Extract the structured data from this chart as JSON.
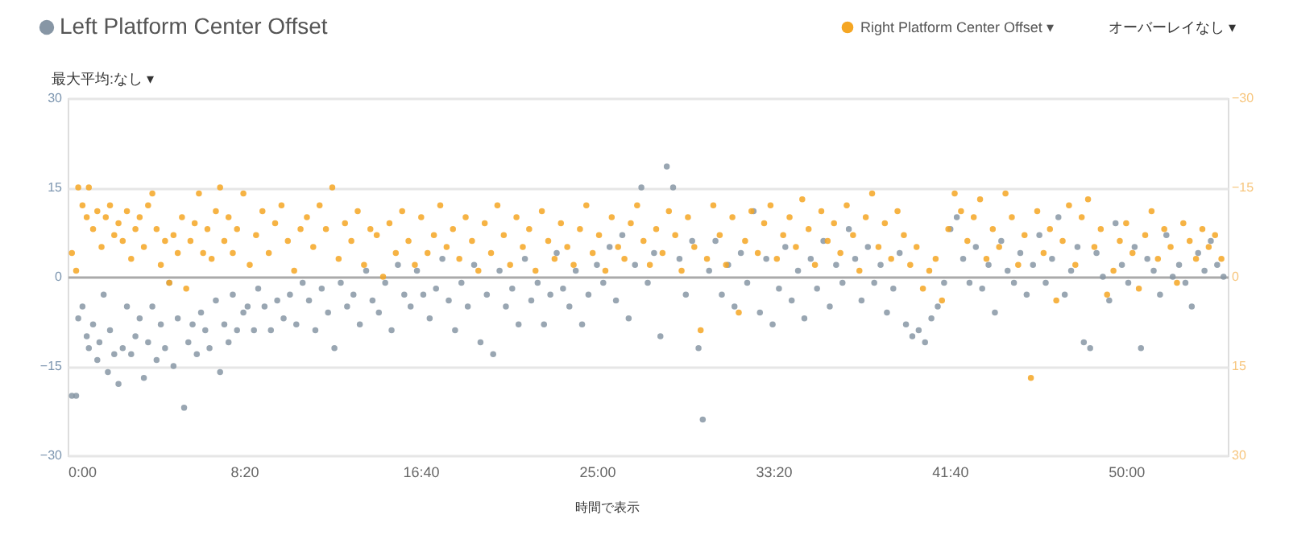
{
  "chart_data": {
    "type": "scatter",
    "xlim": [
      0,
      54.8
    ],
    "xticks": [
      {
        "value": 0,
        "label": "0:00"
      },
      {
        "value": 8.3333,
        "label": "8:20"
      },
      {
        "value": 16.6667,
        "label": "16:40"
      },
      {
        "value": 25,
        "label": "25:00"
      },
      {
        "value": 33.3333,
        "label": "33:20"
      },
      {
        "value": 41.6667,
        "label": "41:40"
      },
      {
        "value": 50,
        "label": "50:00"
      }
    ],
    "ylim": [
      -30,
      30
    ],
    "yticks": [
      -30,
      -15,
      0,
      15,
      30
    ],
    "y2lim": [
      30,
      -30
    ],
    "y2ticks": [
      -30,
      -15,
      0,
      15,
      30
    ],
    "grid": "y",
    "legend": "top",
    "marker": "circle",
    "annotations": [
      "最大平均:なし ▾",
      "オーバーレイなし ▾",
      "時間で表示"
    ],
    "series": [
      {
        "name": "Left Platform Center Offset",
        "color": "#8796a5",
        "x": [
          0.2,
          0.4,
          0.5,
          0.7,
          0.9,
          1.0,
          1.2,
          1.4,
          1.5,
          1.7,
          1.9,
          2.0,
          2.2,
          2.4,
          2.6,
          2.8,
          3.0,
          3.2,
          3.4,
          3.6,
          3.8,
          4.0,
          4.2,
          4.4,
          4.6,
          4.8,
          5.0,
          5.2,
          5.5,
          5.7,
          5.9,
          6.1,
          6.3,
          6.5,
          6.7,
          7.0,
          7.2,
          7.4,
          7.6,
          7.8,
          8.0,
          8.3,
          8.5,
          8.8,
          9.0,
          9.3,
          9.6,
          9.9,
          10.2,
          10.5,
          10.8,
          11.1,
          11.4,
          11.7,
          12.0,
          12.3,
          12.6,
          12.9,
          13.2,
          13.5,
          13.8,
          14.1,
          14.4,
          14.7,
          15.0,
          15.3,
          15.6,
          15.9,
          16.2,
          16.5,
          16.8,
          17.1,
          17.4,
          17.7,
          18.0,
          18.3,
          18.6,
          18.9,
          19.2,
          19.5,
          19.8,
          20.1,
          20.4,
          20.7,
          21.0,
          21.3,
          21.6,
          21.9,
          22.2,
          22.5,
          22.8,
          23.1,
          23.4,
          23.7,
          24.0,
          24.3,
          24.6,
          25.0,
          25.3,
          25.6,
          25.9,
          26.2,
          26.5,
          26.8,
          27.1,
          27.4,
          27.7,
          28.0,
          28.3,
          28.6,
          28.9,
          29.2,
          29.5,
          29.8,
          30.0,
          30.3,
          30.6,
          30.9,
          31.2,
          31.5,
          31.8,
          32.1,
          32.4,
          32.7,
          33.0,
          33.3,
          33.6,
          33.9,
          34.2,
          34.5,
          34.8,
          35.1,
          35.4,
          35.7,
          36.0,
          36.3,
          36.6,
          36.9,
          37.2,
          37.5,
          37.8,
          38.1,
          38.4,
          38.7,
          39.0,
          39.3,
          39.6,
          39.9,
          40.2,
          40.5,
          40.8,
          41.1,
          41.4,
          41.7,
          42.0,
          42.3,
          42.6,
          42.9,
          43.2,
          43.5,
          43.8,
          44.1,
          44.4,
          44.7,
          45.0,
          45.3,
          45.6,
          45.9,
          46.2,
          46.5,
          46.8,
          47.1,
          47.4,
          47.7,
          48.0,
          48.3,
          48.6,
          48.9,
          49.2,
          49.5,
          49.8,
          50.1,
          50.4,
          50.7,
          51.0,
          51.3,
          51.6,
          51.9,
          52.2,
          52.5,
          52.8,
          53.1,
          53.4,
          53.7,
          54.0,
          54.3,
          54.6
        ],
        "values": [
          -20,
          -20,
          -7,
          -5,
          -10,
          -12,
          -8,
          -14,
          -11,
          -3,
          -16,
          -9,
          -13,
          -18,
          -12,
          -5,
          -13,
          -10,
          -7,
          -17,
          -11,
          -5,
          -14,
          -8,
          -12,
          -1,
          -15,
          -7,
          -22,
          -11,
          -8,
          -13,
          -6,
          -9,
          -12,
          -4,
          -16,
          -8,
          -11,
          -3,
          -9,
          -6,
          -5,
          -9,
          -2,
          -5,
          -9,
          -4,
          -7,
          -3,
          -8,
          -1,
          -4,
          -9,
          -2,
          -6,
          -12,
          -1,
          -5,
          -3,
          -8,
          1,
          -4,
          -6,
          -1,
          -9,
          2,
          -3,
          -5,
          1,
          -3,
          -7,
          -2,
          3,
          -4,
          -9,
          -1,
          -5,
          2,
          -11,
          -3,
          -13,
          1,
          -5,
          -2,
          -8,
          3,
          -4,
          -1,
          -8,
          -3,
          4,
          -2,
          -5,
          1,
          -8,
          -3,
          2,
          -1,
          5,
          -4,
          7,
          -7,
          2,
          15,
          -1,
          4,
          -10,
          18.5,
          15,
          3,
          -3,
          6,
          -12,
          -24,
          1,
          6,
          -3,
          2,
          -5,
          4,
          -1,
          11,
          -6,
          3,
          -8,
          -2,
          5,
          -4,
          1,
          -7,
          3,
          -2,
          6,
          -5,
          2,
          -1,
          8,
          3,
          -4,
          5,
          -1,
          2,
          -6,
          -2,
          4,
          -8,
          -10,
          -9,
          -11,
          -7,
          -5,
          -1,
          8,
          10,
          3,
          -1,
          5,
          -2,
          2,
          -6,
          6,
          1,
          -1,
          4,
          -3,
          2,
          7,
          -1,
          3,
          10,
          -3,
          1,
          5,
          -11,
          -12,
          4,
          0,
          -4,
          9,
          2,
          -1,
          5,
          -12,
          3,
          1,
          -3,
          7,
          0,
          2,
          -1,
          -5,
          4,
          1,
          6,
          2,
          0
        ]
      },
      {
        "name": "Right Platform Center Offset ▾",
        "color": "#f5a623",
        "axis": "y2",
        "x": [
          0.2,
          0.4,
          0.5,
          0.7,
          0.9,
          1.0,
          1.2,
          1.4,
          1.6,
          1.8,
          2.0,
          2.2,
          2.4,
          2.6,
          2.8,
          3.0,
          3.2,
          3.4,
          3.6,
          3.8,
          4.0,
          4.2,
          4.4,
          4.6,
          4.8,
          5.0,
          5.2,
          5.4,
          5.6,
          5.8,
          6.0,
          6.2,
          6.4,
          6.6,
          6.8,
          7.0,
          7.2,
          7.4,
          7.6,
          7.8,
          8.0,
          8.3,
          8.6,
          8.9,
          9.2,
          9.5,
          9.8,
          10.1,
          10.4,
          10.7,
          11.0,
          11.3,
          11.6,
          11.9,
          12.2,
          12.5,
          12.8,
          13.1,
          13.4,
          13.7,
          14.0,
          14.3,
          14.6,
          14.9,
          15.2,
          15.5,
          15.8,
          16.1,
          16.4,
          16.7,
          17.0,
          17.3,
          17.6,
          17.9,
          18.2,
          18.5,
          18.8,
          19.1,
          19.4,
          19.7,
          20.0,
          20.3,
          20.6,
          20.9,
          21.2,
          21.5,
          21.8,
          22.1,
          22.4,
          22.7,
          23.0,
          23.3,
          23.6,
          23.9,
          24.2,
          24.5,
          24.8,
          25.1,
          25.4,
          25.7,
          26.0,
          26.3,
          26.6,
          26.9,
          27.2,
          27.5,
          27.8,
          28.1,
          28.4,
          28.7,
          29.0,
          29.3,
          29.6,
          29.9,
          30.2,
          30.5,
          30.8,
          31.1,
          31.4,
          31.7,
          32.0,
          32.3,
          32.6,
          32.9,
          33.2,
          33.5,
          33.8,
          34.1,
          34.4,
          34.7,
          35.0,
          35.3,
          35.6,
          35.9,
          36.2,
          36.5,
          36.8,
          37.1,
          37.4,
          37.7,
          38.0,
          38.3,
          38.6,
          38.9,
          39.2,
          39.5,
          39.8,
          40.1,
          40.4,
          40.7,
          41.0,
          41.3,
          41.6,
          41.9,
          42.2,
          42.5,
          42.8,
          43.1,
          43.4,
          43.7,
          44.0,
          44.3,
          44.6,
          44.9,
          45.2,
          45.5,
          45.8,
          46.1,
          46.4,
          46.7,
          47.0,
          47.3,
          47.6,
          47.9,
          48.2,
          48.5,
          48.8,
          49.1,
          49.4,
          49.7,
          50.0,
          50.3,
          50.6,
          50.9,
          51.2,
          51.5,
          51.8,
          52.1,
          52.4,
          52.7,
          53.0,
          53.3,
          53.6,
          53.9,
          54.2,
          54.5
        ],
        "values": [
          -4,
          -1,
          -15,
          -12,
          -10,
          -15,
          -8,
          -11,
          -5,
          -10,
          -12,
          -7,
          -9,
          -6,
          -11,
          -3,
          -8,
          -10,
          -5,
          -12,
          -14,
          -8,
          -2,
          -6,
          1,
          -7,
          -4,
          -10,
          2,
          -6,
          -9,
          -14,
          -4,
          -8,
          -3,
          -11,
          -15,
          -6,
          -10,
          -4,
          -8,
          -14,
          -2,
          -7,
          -11,
          -4,
          -9,
          -12,
          -6,
          -1,
          -8,
          -10,
          -5,
          -12,
          -8,
          -15,
          -3,
          -9,
          -6,
          -11,
          -2,
          -8,
          -7,
          0,
          -9,
          -4,
          -11,
          -6,
          -2,
          -10,
          -4,
          -7,
          -12,
          -5,
          -8,
          -3,
          -10,
          -6,
          -1,
          -9,
          -4,
          -12,
          -7,
          -2,
          -10,
          -5,
          -8,
          -1,
          -11,
          -6,
          -3,
          -9,
          -5,
          -2,
          -8,
          -12,
          -4,
          -7,
          -1,
          -10,
          -5,
          -3,
          -9,
          -12,
          -6,
          -2,
          -8,
          -4,
          -11,
          -7,
          -1,
          -10,
          -5,
          9,
          -3,
          -12,
          -7,
          -2,
          -10,
          6,
          -6,
          -11,
          -4,
          -9,
          -12,
          -3,
          -7,
          -10,
          -5,
          -13,
          -8,
          -2,
          -11,
          -6,
          -9,
          -4,
          -12,
          -7,
          -1,
          -10,
          -14,
          -5,
          -9,
          -3,
          -11,
          -7,
          -2,
          -5,
          2,
          -1,
          -3,
          4,
          -8,
          -14,
          -11,
          -6,
          -10,
          -13,
          -3,
          -8,
          -5,
          -14,
          -10,
          -2,
          -7,
          17,
          -11,
          -4,
          -8,
          4,
          -6,
          -12,
          -2,
          -10,
          -13,
          -5,
          -8,
          3,
          -1,
          -6,
          -9,
          -4,
          2,
          -7,
          -11,
          -3,
          -8,
          -5,
          1,
          -9,
          -6,
          -3,
          -8,
          -5,
          -7,
          -3
        ]
      }
    ]
  }
}
